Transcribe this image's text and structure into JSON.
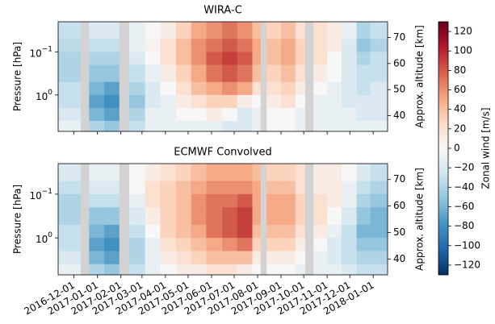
{
  "chart_data": [
    {
      "type": "heatmap",
      "title": "WIRA-C",
      "ylabel": "Pressure [hPa]",
      "y2label": "Approx. altitude [km]",
      "x": [
        "2016-11-10",
        "2016-12-10",
        "2016-12-21",
        "2017-01-10",
        "2017-01-30",
        "2017-02-12",
        "2017-03-05",
        "2017-03-25",
        "2017-04-15",
        "2017-05-05",
        "2017-05-25",
        "2017-06-15",
        "2017-07-05",
        "2017-07-25",
        "2017-08-05",
        "2017-08-13",
        "2017-09-01",
        "2017-09-20",
        "2017-10-03",
        "2017-10-14",
        "2017-11-01",
        "2017-11-20",
        "2017-12-10",
        "2017-12-28",
        "2018-01-20"
      ],
      "y": [
        0.02,
        0.05,
        0.1,
        0.2,
        0.5,
        1,
        2,
        4,
        7
      ],
      "z": [
        [
          -30,
          null,
          -20,
          -20,
          null,
          -10,
          0,
          10,
          30,
          50,
          60,
          70,
          60,
          40,
          null,
          30,
          40,
          20,
          null,
          20,
          10,
          -10,
          -40,
          -30
        ],
        [
          -35,
          null,
          -30,
          -30,
          null,
          -10,
          5,
          20,
          40,
          60,
          70,
          80,
          70,
          50,
          null,
          40,
          50,
          30,
          null,
          20,
          10,
          -20,
          -50,
          -40
        ],
        [
          -40,
          null,
          -40,
          -40,
          null,
          -20,
          0,
          20,
          40,
          60,
          80,
          90,
          80,
          50,
          null,
          40,
          50,
          30,
          null,
          20,
          0,
          -20,
          -40,
          -30
        ],
        [
          -40,
          null,
          -50,
          -50,
          null,
          -30,
          -10,
          10,
          30,
          50,
          70,
          80,
          70,
          40,
          null,
          30,
          40,
          20,
          null,
          10,
          0,
          -20,
          -30,
          -30
        ],
        [
          -30,
          null,
          -60,
          -70,
          null,
          -40,
          -20,
          0,
          20,
          40,
          50,
          60,
          50,
          20,
          null,
          20,
          30,
          10,
          null,
          0,
          -10,
          -20,
          -30,
          -20
        ],
        [
          -30,
          null,
          -70,
          -80,
          null,
          -50,
          -20,
          -10,
          10,
          20,
          30,
          30,
          10,
          0,
          null,
          10,
          20,
          0,
          null,
          -10,
          -10,
          -20,
          -20,
          -20
        ],
        [
          -20,
          null,
          -60,
          -70,
          null,
          -40,
          -10,
          -10,
          0,
          0,
          10,
          0,
          -20,
          -10,
          null,
          0,
          0,
          -10,
          null,
          -10,
          -10,
          -10,
          -20,
          -20
        ],
        [
          -10,
          null,
          -40,
          -50,
          null,
          -30,
          -10,
          -10,
          -10,
          -10,
          -10,
          -20,
          -20,
          -10,
          null,
          0,
          0,
          -10,
          null,
          -10,
          -10,
          -10,
          -10,
          -10
        ]
      ],
      "xlim": [
        "2016-11-10",
        "2018-01-20"
      ],
      "xticks": [
        "2016-12-01",
        "2017-01-01",
        "2017-02-01",
        "2017-03-01",
        "2017-04-01",
        "2017-05-01",
        "2017-06-01",
        "2017-07-01",
        "2017-08-01",
        "2017-09-01",
        "2017-10-01",
        "2017-11-01",
        "2017-12-01",
        "2018-01-01"
      ],
      "show_xtick_labels": false,
      "ylim": [
        0.02,
        7
      ],
      "log_y": true,
      "yticks": [
        {
          "value": 0.1,
          "label": "10",
          "exponent": "−1"
        },
        {
          "value": 1,
          "label": "10",
          "exponent": "0"
        }
      ],
      "y2lim": [
        34,
        76
      ],
      "y2ticks": [
        40,
        50,
        60,
        70
      ]
    },
    {
      "type": "heatmap",
      "title": "ECMWF Convolved",
      "ylabel": "Pressure [hPa]",
      "y2label": "Approx. altitude [km]",
      "x": [
        "2016-11-10",
        "2016-12-10",
        "2016-12-21",
        "2017-01-10",
        "2017-01-30",
        "2017-02-12",
        "2017-03-05",
        "2017-03-25",
        "2017-04-15",
        "2017-05-05",
        "2017-05-25",
        "2017-06-15",
        "2017-07-05",
        "2017-07-25",
        "2017-08-05",
        "2017-08-13",
        "2017-09-01",
        "2017-09-20",
        "2017-10-03",
        "2017-10-14",
        "2017-11-01",
        "2017-11-20",
        "2017-12-10",
        "2017-12-28",
        "2018-01-20"
      ],
      "y": [
        0.02,
        0.05,
        0.1,
        0.2,
        0.5,
        1,
        2,
        4,
        7
      ],
      "z": [
        [
          -20,
          null,
          -10,
          -10,
          null,
          0,
          10,
          20,
          30,
          40,
          50,
          50,
          50,
          40,
          null,
          30,
          30,
          20,
          null,
          10,
          10,
          0,
          -20,
          -30
        ],
        [
          -30,
          null,
          -20,
          -20,
          null,
          0,
          20,
          30,
          40,
          50,
          60,
          60,
          60,
          50,
          null,
          40,
          40,
          20,
          null,
          10,
          10,
          -10,
          -30,
          -40
        ],
        [
          -40,
          null,
          -30,
          -30,
          null,
          -10,
          20,
          30,
          40,
          60,
          70,
          70,
          80,
          50,
          null,
          50,
          50,
          30,
          null,
          20,
          10,
          -10,
          -40,
          -50
        ],
        [
          -40,
          null,
          -50,
          -50,
          null,
          -20,
          10,
          30,
          40,
          60,
          70,
          80,
          90,
          50,
          null,
          50,
          50,
          30,
          null,
          20,
          0,
          -20,
          -50,
          -60
        ],
        [
          -30,
          null,
          -60,
          -70,
          null,
          -30,
          0,
          30,
          40,
          50,
          70,
          80,
          90,
          40,
          null,
          40,
          40,
          20,
          null,
          10,
          -10,
          -30,
          -60,
          -60
        ],
        [
          -30,
          null,
          -70,
          -80,
          null,
          -40,
          -10,
          20,
          30,
          40,
          50,
          60,
          70,
          30,
          null,
          30,
          30,
          10,
          null,
          0,
          -20,
          -30,
          -50,
          -50
        ],
        [
          -20,
          null,
          -60,
          -70,
          null,
          -40,
          -10,
          10,
          20,
          30,
          40,
          40,
          40,
          10,
          null,
          10,
          10,
          0,
          null,
          -10,
          -20,
          -30,
          -40,
          -40
        ],
        [
          -10,
          null,
          -40,
          -50,
          null,
          -30,
          -10,
          0,
          10,
          10,
          20,
          20,
          10,
          0,
          null,
          0,
          0,
          -10,
          null,
          -10,
          -10,
          -20,
          -30,
          -30
        ]
      ],
      "xlim": [
        "2016-11-10",
        "2018-01-20"
      ],
      "xticks": [
        "2016-12-01",
        "2017-01-01",
        "2017-02-01",
        "2017-03-01",
        "2017-04-01",
        "2017-05-01",
        "2017-06-01",
        "2017-07-01",
        "2017-08-01",
        "2017-09-01",
        "2017-10-01",
        "2017-11-01",
        "2017-12-01",
        "2018-01-01"
      ],
      "show_xtick_labels": true,
      "ylim": [
        0.02,
        7
      ],
      "log_y": true,
      "yticks": [
        {
          "value": 0.1,
          "label": "10",
          "exponent": "−1"
        },
        {
          "value": 1,
          "label": "10",
          "exponent": "0"
        }
      ],
      "y2lim": [
        34,
        76
      ],
      "y2ticks": [
        40,
        50,
        60,
        70
      ]
    }
  ],
  "colorbar": {
    "label": "Zonal wind [m/s]",
    "clim": [
      -130,
      130
    ],
    "colormap": [
      "#053061",
      "#2166ac",
      "#4393c3",
      "#92c5de",
      "#d1e5f0",
      "#f7f7f7",
      "#fddbc7",
      "#f4a582",
      "#d6604d",
      "#b2182b",
      "#67001f"
    ],
    "missing_color": "#d3d3d3",
    "ticks": [
      {
        "value": -120,
        "label": "−120"
      },
      {
        "value": -100,
        "label": "−100"
      },
      {
        "value": -80,
        "label": "−80"
      },
      {
        "value": -60,
        "label": "−60"
      },
      {
        "value": -40,
        "label": "−40"
      },
      {
        "value": -20,
        "label": "−20"
      },
      0,
      20,
      40,
      60,
      80,
      100,
      120
    ]
  }
}
